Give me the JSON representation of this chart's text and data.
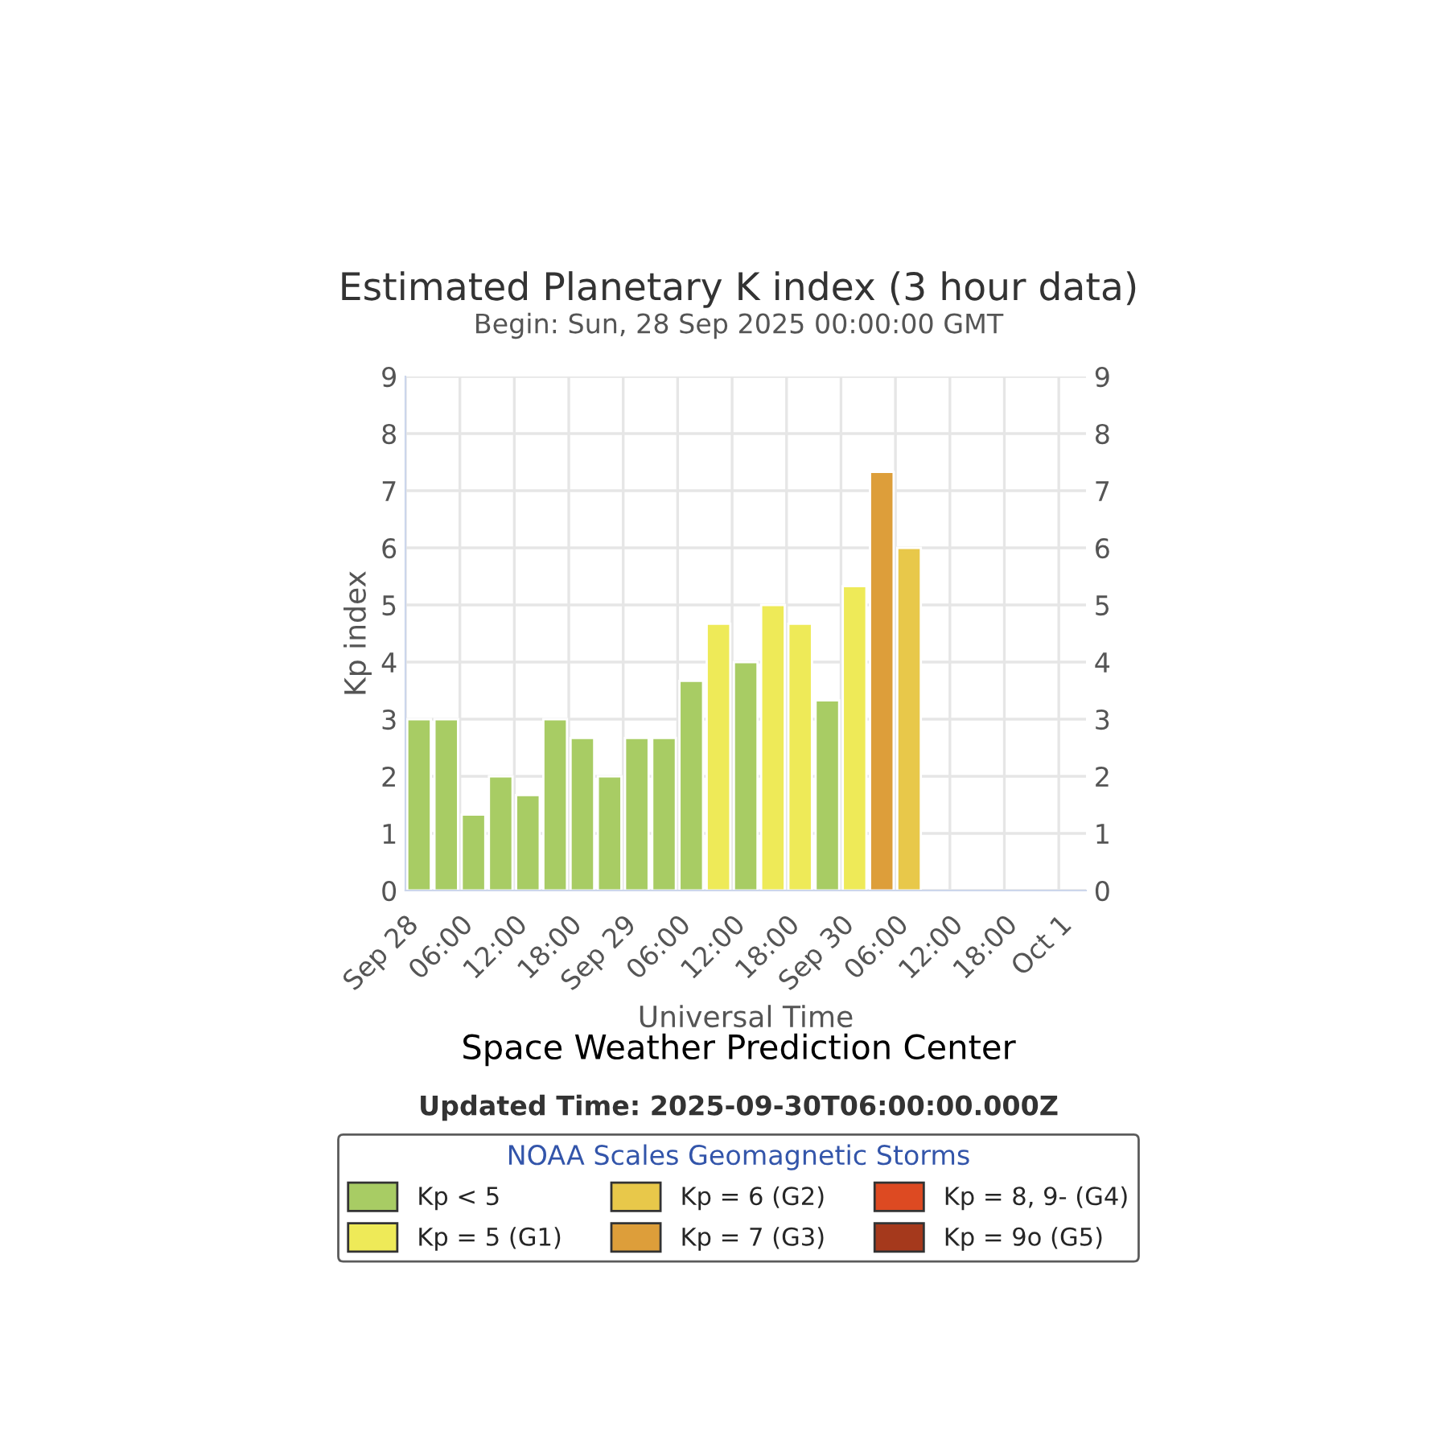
{
  "chart_data": {
    "type": "bar",
    "title": "Estimated Planetary K index (3 hour data)",
    "subtitle": "Begin: Sun, 28 Sep 2025 00:00:00 GMT",
    "xlabel": "Universal Time",
    "ylabel": "Kp index",
    "x": [
      "2025-09-28T01:30",
      "2025-09-28T04:30",
      "2025-09-28T07:30",
      "2025-09-28T10:30",
      "2025-09-28T13:30",
      "2025-09-28T16:30",
      "2025-09-28T19:30",
      "2025-09-28T22:30",
      "2025-09-29T01:30",
      "2025-09-29T04:30",
      "2025-09-29T07:30",
      "2025-09-29T10:30",
      "2025-09-29T13:30",
      "2025-09-29T16:30",
      "2025-09-29T19:30",
      "2025-09-29T22:30",
      "2025-09-30T01:30",
      "2025-09-30T04:30",
      "2025-09-30T07:30"
    ],
    "series": [
      {
        "name": "Kp < 5",
        "color": "#a8cc64",
        "values": [
          3,
          3,
          1.33,
          2,
          1.67,
          3,
          2.67,
          2,
          2.67,
          2.67,
          3.67,
          null,
          4,
          null,
          null,
          3.33,
          null,
          null,
          null
        ]
      },
      {
        "name": "Kp = 5 (G1)",
        "color": "#eeea58",
        "values": [
          null,
          null,
          null,
          null,
          null,
          null,
          null,
          null,
          null,
          null,
          null,
          4.67,
          null,
          5,
          4.67,
          null,
          5.33,
          null,
          null
        ]
      },
      {
        "name": "Kp = 6 (G2)",
        "color": "#e8c84a",
        "values": [
          null,
          null,
          null,
          null,
          null,
          null,
          null,
          null,
          null,
          null,
          null,
          null,
          null,
          null,
          null,
          null,
          null,
          null,
          6
        ]
      },
      {
        "name": "Kp = 7 (G3)",
        "color": "#dd9e3a",
        "values": [
          null,
          null,
          null,
          null,
          null,
          null,
          null,
          null,
          null,
          null,
          null,
          null,
          null,
          null,
          null,
          null,
          null,
          7.33,
          null
        ]
      },
      {
        "name": "Kp = 8, 9- (G4)",
        "color": "#dd4a22",
        "values": [
          null,
          null,
          null,
          null,
          null,
          null,
          null,
          null,
          null,
          null,
          null,
          null,
          null,
          null,
          null,
          null,
          null,
          null,
          null
        ]
      },
      {
        "name": "Kp = 9o (G5)",
        "color": "#a5391c",
        "values": [
          null,
          null,
          null,
          null,
          null,
          null,
          null,
          null,
          null,
          null,
          null,
          null,
          null,
          null,
          null,
          null,
          null,
          null,
          null
        ]
      }
    ],
    "xlim": [
      "2025-09-28T00:00",
      "2025-10-01T03:00"
    ],
    "xticks": [
      {
        "value": "2025-09-28T00:00",
        "label": "Sep 28"
      },
      {
        "value": "2025-09-28T06:00",
        "label": "06:00"
      },
      {
        "value": "2025-09-28T12:00",
        "label": "12:00"
      },
      {
        "value": "2025-09-28T18:00",
        "label": "18:00"
      },
      {
        "value": "2025-09-29T00:00",
        "label": "Sep 29"
      },
      {
        "value": "2025-09-29T06:00",
        "label": "06:00"
      },
      {
        "value": "2025-09-29T12:00",
        "label": "12:00"
      },
      {
        "value": "2025-09-29T18:00",
        "label": "18:00"
      },
      {
        "value": "2025-09-30T00:00",
        "label": "Sep 30"
      },
      {
        "value": "2025-09-30T06:00",
        "label": "06:00"
      },
      {
        "value": "2025-09-30T12:00",
        "label": "12:00"
      },
      {
        "value": "2025-09-30T18:00",
        "label": "18:00"
      },
      {
        "value": "2025-10-01T00:00",
        "label": "Oct 1"
      }
    ],
    "ylim": [
      0,
      9
    ],
    "yticks": [
      0,
      1,
      2,
      3,
      4,
      5,
      6,
      7,
      8,
      9
    ],
    "y2lim": [
      0,
      9
    ],
    "y2ticks": [
      0,
      1,
      2,
      3,
      4,
      5,
      6,
      7,
      8,
      9
    ],
    "grid": true,
    "legend": "bottom",
    "legend_title": "NOAA Scales Geomagnetic Storms",
    "annotations": [
      "Space Weather Prediction Center",
      "Updated Time: 2025-09-30T06:00:00.000Z"
    ]
  }
}
